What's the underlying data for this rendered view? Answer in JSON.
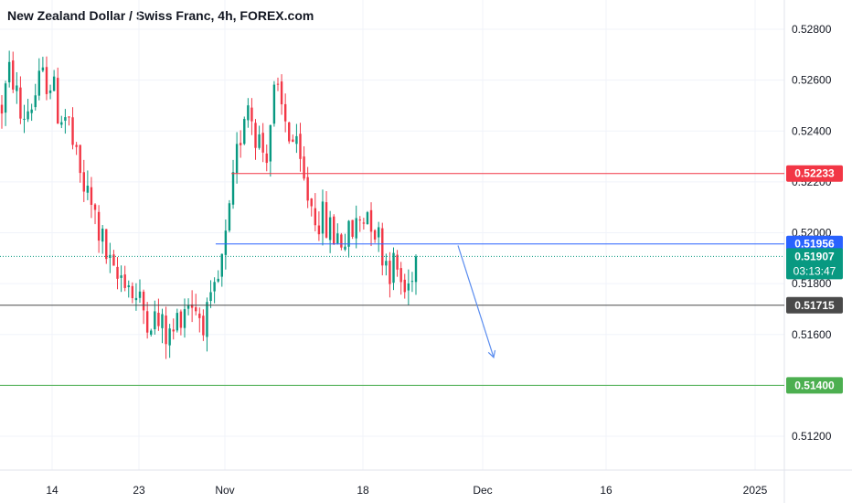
{
  "header": {
    "title": "New Zealand Dollar / Swiss Franc, 4h, FOREX.com"
  },
  "colors": {
    "up": "#089981",
    "down": "#f23645",
    "grid": "#f0f3fa",
    "axis_text": "#131722",
    "resistance": "#f23645",
    "entry": "#2962ff",
    "support": "#4a4a4a",
    "target": "#4caf50",
    "arrow": "#5b8def"
  },
  "chart_data": {
    "type": "candlestick",
    "title": "New Zealand Dollar / Swiss Franc, 4h, FOREX.com",
    "ylim": [
      0.5105,
      0.5295
    ],
    "y_ticks": [
      "0.51200",
      "0.51400",
      "0.51600",
      "0.51800",
      "0.52000",
      "0.52200",
      "0.52400",
      "0.52600",
      "0.52800"
    ],
    "x_ticks": [
      "14",
      "23",
      "Nov",
      "18",
      "Dec",
      "16",
      "2025"
    ],
    "grid": true,
    "path": [
      [
        0.525,
        0.524
      ],
      [
        0.5265,
        0.522
      ],
      [
        0.5245,
        0.5245
      ],
      [
        0.525,
        0.5242
      ],
      [
        0.5258,
        0.524
      ],
      [
        0.5262,
        0.525
      ],
      [
        0.5248,
        0.5252
      ],
      [
        0.5245,
        0.5249
      ],
      [
        0.5225,
        0.5252
      ],
      [
        0.5215,
        0.5238
      ],
      [
        0.5205,
        0.5238
      ],
      [
        0.5192,
        0.522
      ],
      [
        0.518,
        0.521
      ],
      [
        0.5185,
        0.519
      ],
      [
        0.5175,
        0.519
      ],
      [
        0.517,
        0.5178
      ],
      [
        0.5167,
        0.5182
      ],
      [
        0.5162,
        0.5178
      ],
      [
        0.5158,
        0.5172
      ],
      [
        0.517,
        0.5183
      ],
      [
        0.5175,
        0.518
      ],
      [
        0.5168,
        0.5185
      ],
      [
        0.5166,
        0.5175
      ],
      [
        0.518,
        0.5195
      ],
      [
        0.52,
        0.5225
      ],
      [
        0.523,
        0.5262
      ],
      [
        0.5255,
        0.525
      ],
      [
        0.524,
        0.525
      ],
      [
        0.523,
        0.5255
      ],
      [
        0.5255,
        0.524
      ],
      [
        0.5245,
        0.5242
      ],
      [
        0.5235,
        0.5242
      ],
      [
        0.522,
        0.5245
      ],
      [
        0.521,
        0.5225
      ],
      [
        0.5205,
        0.5222
      ],
      [
        0.52,
        0.521
      ],
      [
        0.5198,
        0.5203
      ],
      [
        0.5198,
        0.5192
      ],
      [
        0.5205,
        0.5213
      ],
      [
        0.521,
        0.5225
      ],
      [
        0.5198,
        0.5222
      ],
      [
        0.5188,
        0.52
      ],
      [
        0.5185,
        0.5192
      ],
      [
        0.5175,
        0.5188
      ],
      [
        0.5195,
        0.5178
      ]
    ],
    "levels": [
      {
        "name": "resistance",
        "value": 0.52233,
        "label": "0.52233",
        "from": 0.295
      },
      {
        "name": "entry",
        "value": 0.51956,
        "label": "0.51956",
        "from": 0.275
      },
      {
        "name": "support",
        "value": 0.51715,
        "label": "0.51715",
        "from": 0.0
      },
      {
        "name": "target",
        "value": 0.514,
        "label": "0.51400",
        "from": 0.0
      }
    ],
    "current_price": {
      "value": 0.51907,
      "label": "0.51907",
      "countdown": "03:13:47"
    },
    "forecast_arrow": {
      "from_value": 0.5195,
      "to_value": 0.5151
    }
  }
}
